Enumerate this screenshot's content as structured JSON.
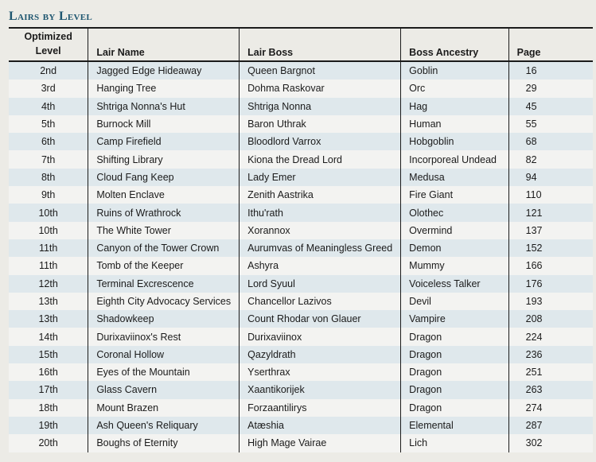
{
  "title": "Lairs by Level",
  "headers": {
    "level_line1": "Optimized",
    "level_line2": "Level",
    "lair_name": "Lair Name",
    "lair_boss": "Lair Boss",
    "ancestry": "Boss Ancestry",
    "page": "Page"
  },
  "rows": [
    {
      "level": "2nd",
      "lair": "Jagged Edge Hideaway",
      "boss": "Queen Bargnot",
      "ancestry": "Goblin",
      "page": "16"
    },
    {
      "level": "3rd",
      "lair": "Hanging Tree",
      "boss": "Dohma Raskovar",
      "ancestry": "Orc",
      "page": "29"
    },
    {
      "level": "4th",
      "lair": "Shtriga Nonna's Hut",
      "boss": "Shtriga Nonna",
      "ancestry": "Hag",
      "page": "45"
    },
    {
      "level": "5th",
      "lair": "Burnock Mill",
      "boss": "Baron Uthrak",
      "ancestry": "Human",
      "page": "55"
    },
    {
      "level": "6th",
      "lair": "Camp Firefield",
      "boss": "Bloodlord Varrox",
      "ancestry": "Hobgoblin",
      "page": "68"
    },
    {
      "level": "7th",
      "lair": "Shifting Library",
      "boss": "Kiona the Dread Lord",
      "ancestry": "Incorporeal Undead",
      "page": "82"
    },
    {
      "level": "8th",
      "lair": "Cloud Fang Keep",
      "boss": "Lady Emer",
      "ancestry": "Medusa",
      "page": "94"
    },
    {
      "level": "9th",
      "lair": "Molten Enclave",
      "boss": "Zenith Aastrika",
      "ancestry": "Fire Giant",
      "page": "110"
    },
    {
      "level": "10th",
      "lair": "Ruins of Wrathrock",
      "boss": "Ithu'rath",
      "ancestry": "Olothec",
      "page": "121"
    },
    {
      "level": "10th",
      "lair": "The White Tower",
      "boss": "Xorannox",
      "ancestry": "Overmind",
      "page": "137"
    },
    {
      "level": "11th",
      "lair": "Canyon of the Tower Crown",
      "boss": "Aurumvas of Meaningless Greed",
      "ancestry": "Demon",
      "page": "152"
    },
    {
      "level": "11th",
      "lair": "Tomb of the Keeper",
      "boss": "Ashyra",
      "ancestry": "Mummy",
      "page": "166"
    },
    {
      "level": "12th",
      "lair": "Terminal Excrescence",
      "boss": "Lord Syuul",
      "ancestry": "Voiceless Talker",
      "page": "176"
    },
    {
      "level": "13th",
      "lair": "Eighth City Advocacy Services",
      "boss": "Chancellor Lazivos",
      "ancestry": "Devil",
      "page": "193"
    },
    {
      "level": "13th",
      "lair": "Shadowkeep",
      "boss": "Count Rhodar von Glauer",
      "ancestry": "Vampire",
      "page": "208"
    },
    {
      "level": "14th",
      "lair": "Durixaviinox's Rest",
      "boss": "Durixaviinox",
      "ancestry": "Dragon",
      "page": "224"
    },
    {
      "level": "15th",
      "lair": "Coronal Hollow",
      "boss": "Qazyldrath",
      "ancestry": "Dragon",
      "page": "236"
    },
    {
      "level": "16th",
      "lair": "Eyes of the Mountain",
      "boss": "Yserthrax",
      "ancestry": "Dragon",
      "page": "251"
    },
    {
      "level": "17th",
      "lair": "Glass Cavern",
      "boss": "Xaantikorijek",
      "ancestry": "Dragon",
      "page": "263"
    },
    {
      "level": "18th",
      "lair": "Mount Brazen",
      "boss": "Forzaantilirys",
      "ancestry": "Dragon",
      "page": "274"
    },
    {
      "level": "19th",
      "lair": "Ash Queen's Reliquary",
      "boss": "Atæshia",
      "ancestry": "Elemental",
      "page": "287"
    },
    {
      "level": "20th",
      "lair": "Boughs of Eternity",
      "boss": "High Mage Vairae",
      "ancestry": "Lich",
      "page": "302"
    }
  ]
}
